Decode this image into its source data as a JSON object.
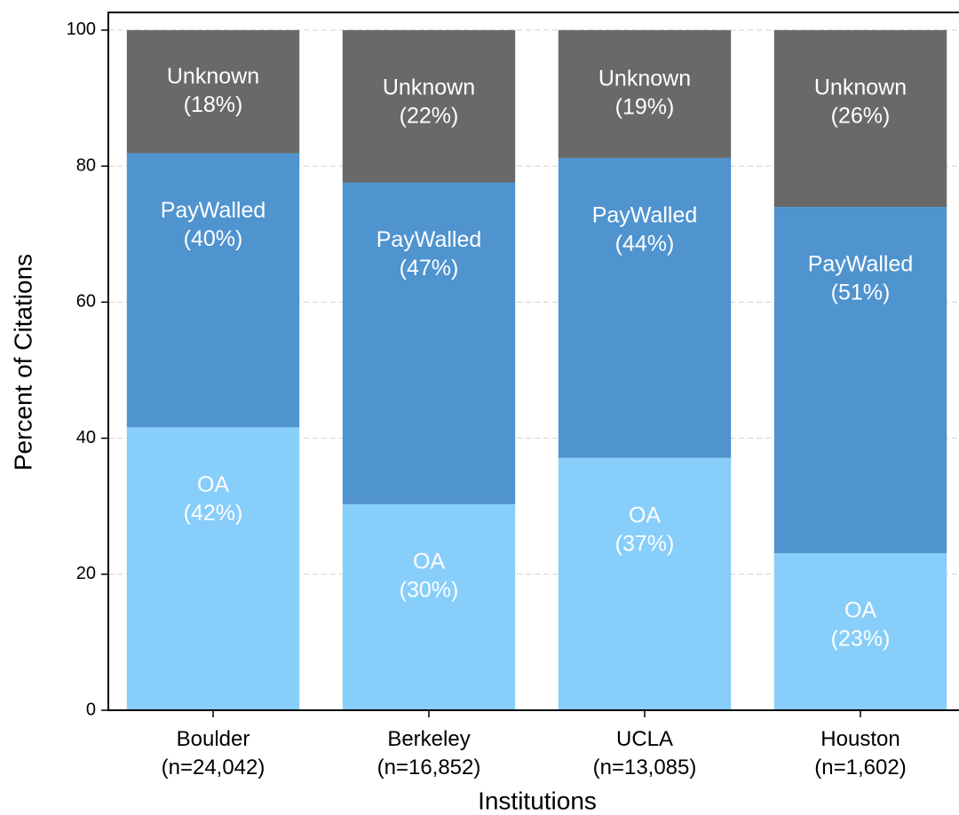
{
  "chart_data": {
    "type": "stacked_bar",
    "categories": [
      "Boulder\n(n=24,042)",
      "Berkeley\n(n=16,852)",
      "UCLA\n(n=13,085)",
      "Houston\n(n=1,602)"
    ],
    "series": [
      {
        "name": "OA",
        "color": "#87cefa",
        "values": [
          41.6,
          30.3,
          37.1,
          23.1
        ],
        "value_labels": [
          "(42%)",
          "(30%)",
          "(37%)",
          "(23%)"
        ]
      },
      {
        "name": "PayWalled",
        "color": "#4f93cf",
        "values": [
          40.3,
          47.3,
          44.1,
          50.9
        ],
        "value_labels": [
          "(40%)",
          "(47%)",
          "(44%)",
          "(51%)"
        ]
      },
      {
        "name": "Unknown",
        "color": "#696969",
        "values": [
          18.1,
          22.4,
          18.8,
          26.0
        ],
        "value_labels": [
          "(18%)",
          "(22%)",
          "(19%)",
          "(26%)"
        ]
      }
    ],
    "xlabel": "Institutions",
    "ylabel": "Percent of Citations",
    "ylim": [
      0,
      102.6
    ],
    "yticks": [
      0,
      20,
      40,
      60,
      80,
      100
    ],
    "grid": true
  }
}
